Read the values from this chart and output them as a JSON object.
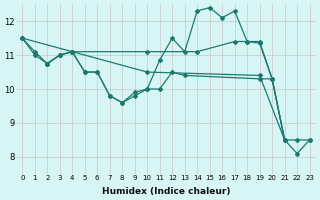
{
  "xlabel": "Humidex (Indice chaleur)",
  "bg_color": "#d8f5f5",
  "grid_color": "#c8c8c8",
  "line_color": "#1a7a6e",
  "xlim": [
    -0.5,
    23.5
  ],
  "ylim": [
    7.5,
    12.5
  ],
  "yticks": [
    8,
    9,
    10,
    11,
    12
  ],
  "xticks": [
    0,
    1,
    2,
    3,
    4,
    5,
    6,
    7,
    8,
    9,
    10,
    11,
    12,
    13,
    14,
    15,
    16,
    17,
    18,
    19,
    20,
    21,
    22,
    23
  ],
  "lines": [
    {
      "x": [
        0,
        1,
        2,
        3,
        4,
        10,
        19,
        21,
        22,
        23
      ],
      "y": [
        11.5,
        11.1,
        10.75,
        11.0,
        11.1,
        10.5,
        10.4,
        8.5,
        8.5,
        8.5
      ]
    },
    {
      "x": [
        2,
        3,
        4,
        5,
        6,
        7,
        8,
        9,
        10,
        11,
        12,
        13,
        19,
        20,
        21
      ],
      "y": [
        10.75,
        11.0,
        11.1,
        10.5,
        10.5,
        9.8,
        9.6,
        9.8,
        10.0,
        10.0,
        10.5,
        10.4,
        10.3,
        10.3,
        8.5
      ]
    },
    {
      "x": [
        0,
        1,
        2,
        3,
        4,
        5,
        6,
        7,
        8,
        9,
        10,
        11,
        12,
        13,
        14,
        15,
        16,
        17,
        18,
        19,
        20,
        21,
        22,
        23
      ],
      "y": [
        11.5,
        11.0,
        10.75,
        11.0,
        11.1,
        10.5,
        10.5,
        9.8,
        9.6,
        9.9,
        10.0,
        10.85,
        11.5,
        11.1,
        12.3,
        12.4,
        12.1,
        12.3,
        11.4,
        11.35,
        10.3,
        8.5,
        8.1,
        8.5
      ]
    },
    {
      "x": [
        0,
        4,
        10,
        14,
        17,
        18,
        19,
        20,
        21
      ],
      "y": [
        11.5,
        11.1,
        11.1,
        11.1,
        11.4,
        11.4,
        11.4,
        10.3,
        8.5
      ]
    }
  ]
}
